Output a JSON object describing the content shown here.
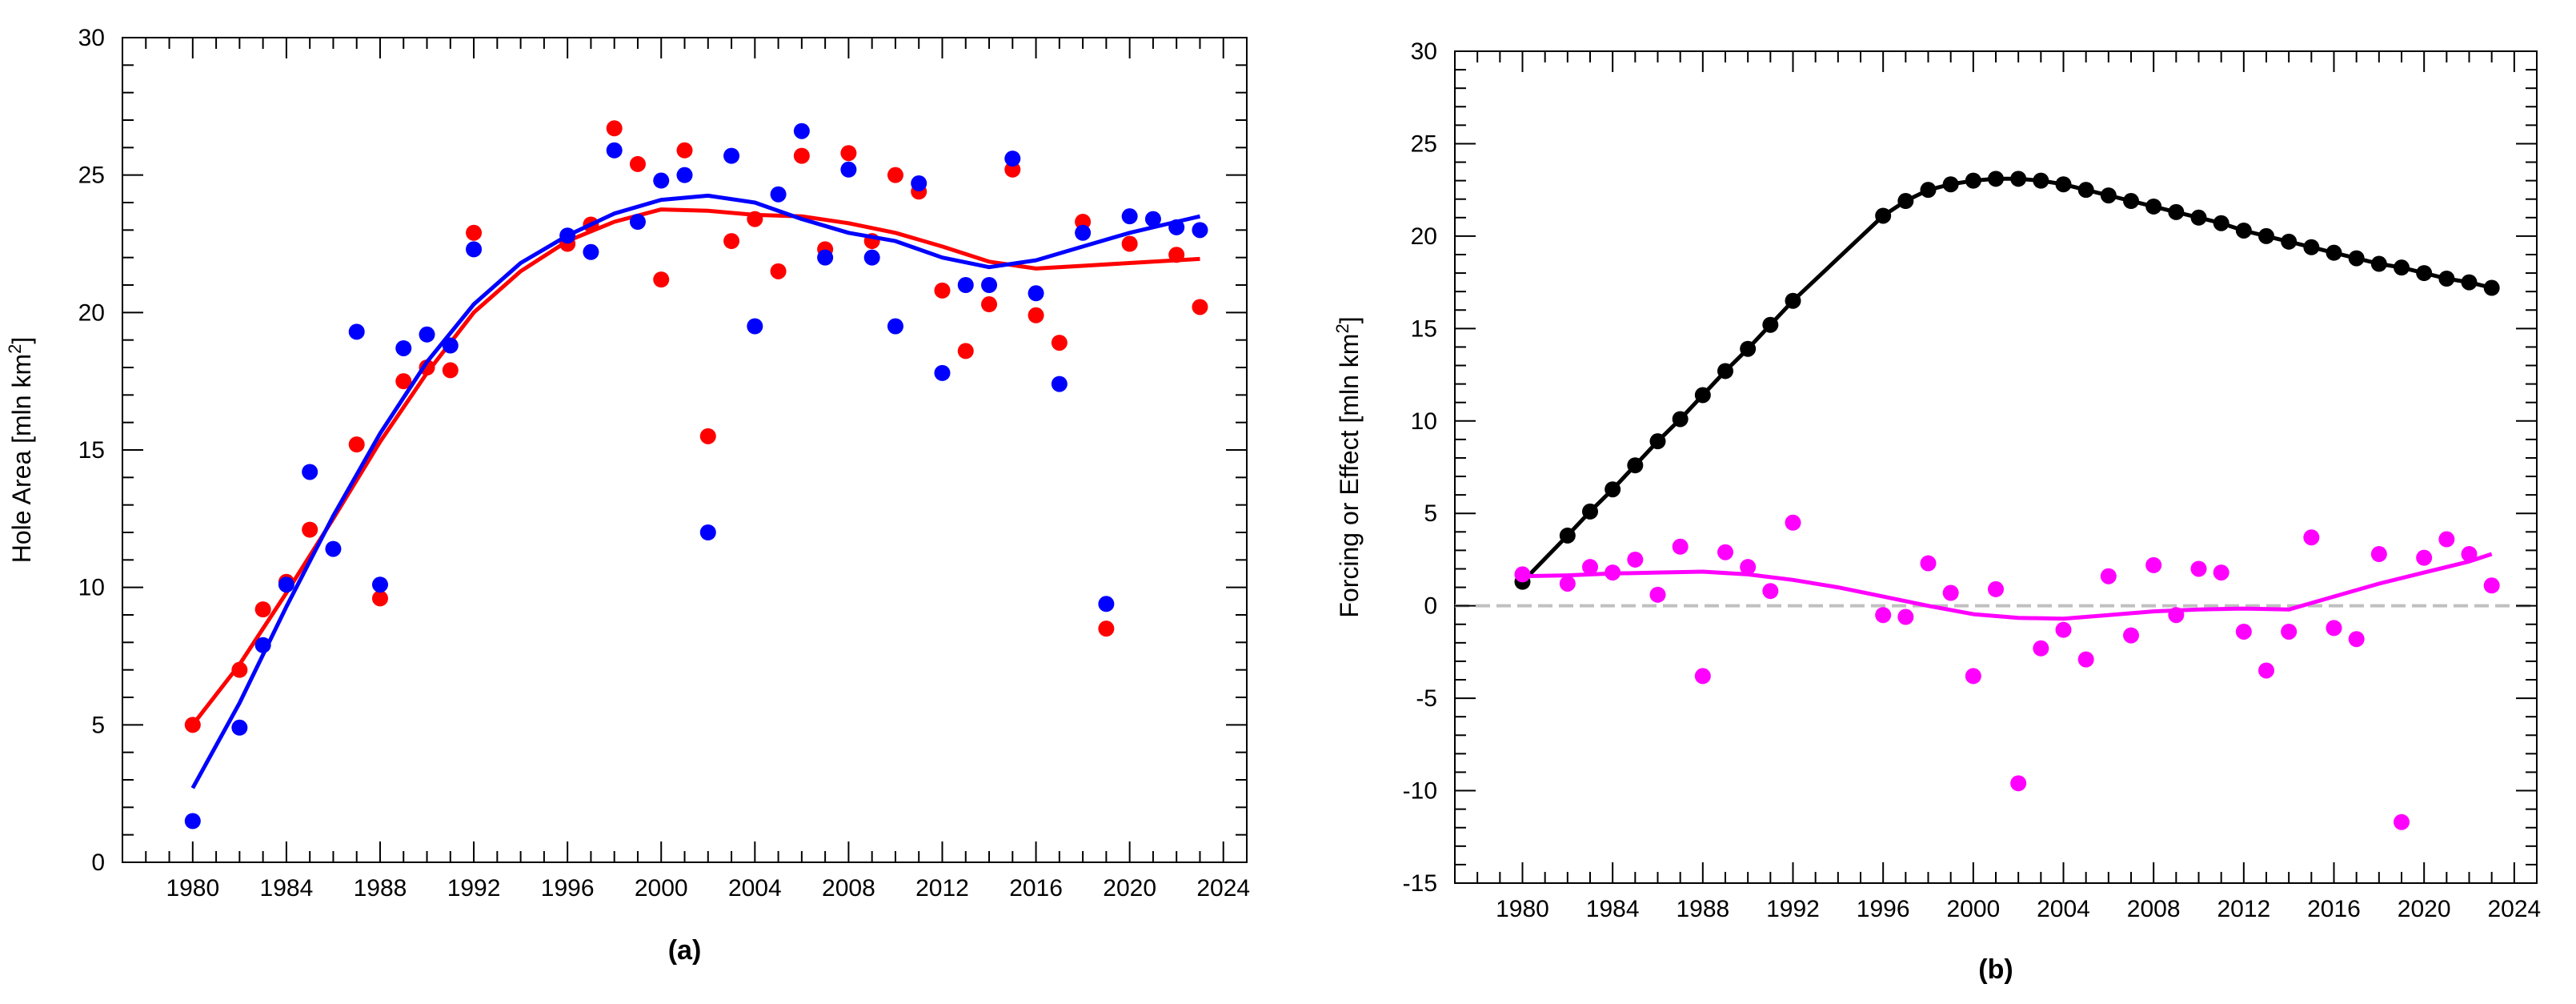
{
  "chart_data": [
    {
      "type": "scatter",
      "panel_label": "(a)",
      "ylabel": "Hole Area [mln km",
      "ylabel_sup": "2",
      "ylabel_end": "]",
      "xlim": [
        1977,
        2025
      ],
      "ylim": [
        0,
        30
      ],
      "xticks": [
        1980,
        1984,
        1988,
        1992,
        1996,
        2000,
        2004,
        2008,
        2012,
        2016,
        2020,
        2024
      ],
      "yticks": [
        0,
        5,
        10,
        15,
        20,
        25,
        30
      ],
      "series": [
        {
          "name": "red",
          "color": "#ff0000",
          "points": [
            [
              1980,
              5.0
            ],
            [
              1982,
              7.0
            ],
            [
              1983,
              9.2
            ],
            [
              1984,
              10.2
            ],
            [
              1985,
              12.1
            ],
            [
              1987,
              15.2
            ],
            [
              1988,
              9.6
            ],
            [
              1989,
              17.5
            ],
            [
              1990,
              18.0
            ],
            [
              1991,
              17.9
            ],
            [
              1992,
              22.9
            ],
            [
              1996,
              22.5
            ],
            [
              1997,
              23.2
            ],
            [
              1998,
              26.7
            ],
            [
              1999,
              25.4
            ],
            [
              2000,
              21.2
            ],
            [
              2001,
              25.9
            ],
            [
              2002,
              15.5
            ],
            [
              2003,
              22.6
            ],
            [
              2004,
              23.4
            ],
            [
              2005,
              21.5
            ],
            [
              2006,
              25.7
            ],
            [
              2007,
              22.3
            ],
            [
              2008,
              25.8
            ],
            [
              2009,
              22.6
            ],
            [
              2010,
              25.0
            ],
            [
              2011,
              24.4
            ],
            [
              2012,
              20.8
            ],
            [
              2013,
              18.6
            ],
            [
              2014,
              20.3
            ],
            [
              2015,
              25.2
            ],
            [
              2016,
              19.9
            ],
            [
              2017,
              18.9
            ],
            [
              2018,
              23.3
            ],
            [
              2019,
              8.5
            ],
            [
              2020,
              22.5
            ],
            [
              2022,
              22.1
            ],
            [
              2023,
              20.2
            ]
          ],
          "smooth": [
            [
              1980,
              5.0
            ],
            [
              1982,
              7.2
            ],
            [
              1984,
              9.8
            ],
            [
              1986,
              12.5
            ],
            [
              1988,
              15.3
            ],
            [
              1990,
              17.8
            ],
            [
              1992,
              20.0
            ],
            [
              1994,
              21.5
            ],
            [
              1996,
              22.6
            ],
            [
              1998,
              23.3
            ],
            [
              2000,
              23.75
            ],
            [
              2002,
              23.7
            ],
            [
              2004,
              23.55
            ],
            [
              2006,
              23.5
            ],
            [
              2008,
              23.25
            ],
            [
              2010,
              22.9
            ],
            [
              2012,
              22.4
            ],
            [
              2014,
              21.85
            ],
            [
              2016,
              21.6
            ],
            [
              2018,
              21.7
            ],
            [
              2020,
              21.8
            ],
            [
              2023,
              21.95
            ]
          ]
        },
        {
          "name": "blue",
          "color": "#0000ff",
          "points": [
            [
              1980,
              1.5
            ],
            [
              1982,
              4.9
            ],
            [
              1983,
              7.9
            ],
            [
              1984,
              10.1
            ],
            [
              1985,
              14.2
            ],
            [
              1986,
              11.4
            ],
            [
              1987,
              19.3
            ],
            [
              1988,
              10.1
            ],
            [
              1989,
              18.7
            ],
            [
              1990,
              19.2
            ],
            [
              1991,
              18.8
            ],
            [
              1992,
              22.3
            ],
            [
              1996,
              22.8
            ],
            [
              1997,
              22.2
            ],
            [
              1998,
              25.9
            ],
            [
              1999,
              23.3
            ],
            [
              2000,
              24.8
            ],
            [
              2001,
              25.0
            ],
            [
              2002,
              12.0
            ],
            [
              2003,
              25.7
            ],
            [
              2004,
              19.5
            ],
            [
              2005,
              24.3
            ],
            [
              2006,
              26.6
            ],
            [
              2007,
              22.0
            ],
            [
              2008,
              25.2
            ],
            [
              2009,
              22.0
            ],
            [
              2010,
              19.5
            ],
            [
              2011,
              24.7
            ],
            [
              2012,
              17.8
            ],
            [
              2013,
              21.0
            ],
            [
              2014,
              21.0
            ],
            [
              2015,
              25.6
            ],
            [
              2016,
              20.7
            ],
            [
              2017,
              17.4
            ],
            [
              2018,
              22.9
            ],
            [
              2019,
              9.4
            ],
            [
              2020,
              23.5
            ],
            [
              2021,
              23.4
            ],
            [
              2022,
              23.1
            ],
            [
              2023,
              23.0
            ]
          ],
          "smooth": [
            [
              1980,
              2.7
            ],
            [
              1982,
              5.8
            ],
            [
              1984,
              9.3
            ],
            [
              1986,
              12.6
            ],
            [
              1988,
              15.6
            ],
            [
              1990,
              18.2
            ],
            [
              1992,
              20.3
            ],
            [
              1994,
              21.8
            ],
            [
              1996,
              22.8
            ],
            [
              1998,
              23.6
            ],
            [
              2000,
              24.1
            ],
            [
              2002,
              24.25
            ],
            [
              2004,
              24.0
            ],
            [
              2006,
              23.4
            ],
            [
              2008,
              22.9
            ],
            [
              2010,
              22.6
            ],
            [
              2012,
              22.0
            ],
            [
              2014,
              21.65
            ],
            [
              2016,
              21.9
            ],
            [
              2018,
              22.4
            ],
            [
              2020,
              22.9
            ],
            [
              2022,
              23.3
            ],
            [
              2023,
              23.5
            ]
          ]
        }
      ]
    },
    {
      "type": "scatter",
      "panel_label": "(b)",
      "ylabel": "Forcing or Effect  [mln km",
      "ylabel_sup": "2",
      "ylabel_end": "]",
      "xlim": [
        1977,
        2025
      ],
      "ylim": [
        -15,
        30
      ],
      "xticks": [
        1980,
        1984,
        1988,
        1992,
        1996,
        2000,
        2004,
        2008,
        2012,
        2016,
        2020,
        2024
      ],
      "yticks": [
        -15,
        -10,
        -5,
        0,
        5,
        10,
        15,
        20,
        25,
        30
      ],
      "zero_line_color": "#c0c0c0",
      "series": [
        {
          "name": "forcing",
          "color": "#000000",
          "connected": true,
          "points": [
            [
              1980,
              1.3
            ],
            [
              1982,
              3.8
            ],
            [
              1983,
              5.1
            ],
            [
              1984,
              6.3
            ],
            [
              1985,
              7.6
            ],
            [
              1986,
              8.9
            ],
            [
              1987,
              10.1
            ],
            [
              1988,
              11.4
            ],
            [
              1989,
              12.7
            ],
            [
              1990,
              13.9
            ],
            [
              1991,
              15.2
            ],
            [
              1992,
              16.5
            ],
            [
              1996,
              21.1
            ],
            [
              1997,
              21.9
            ],
            [
              1998,
              22.5
            ],
            [
              1999,
              22.8
            ],
            [
              2000,
              23.0
            ],
            [
              2001,
              23.1
            ],
            [
              2002,
              23.1
            ],
            [
              2003,
              23.0
            ],
            [
              2004,
              22.8
            ],
            [
              2005,
              22.5
            ],
            [
              2006,
              22.2
            ],
            [
              2007,
              21.9
            ],
            [
              2008,
              21.6
            ],
            [
              2009,
              21.3
            ],
            [
              2010,
              21.0
            ],
            [
              2011,
              20.7
            ],
            [
              2012,
              20.3
            ],
            [
              2013,
              20.0
            ],
            [
              2014,
              19.7
            ],
            [
              2015,
              19.4
            ],
            [
              2016,
              19.1
            ],
            [
              2017,
              18.8
            ],
            [
              2018,
              18.5
            ],
            [
              2019,
              18.3
            ],
            [
              2020,
              18.0
            ],
            [
              2021,
              17.7
            ],
            [
              2022,
              17.5
            ],
            [
              2023,
              17.2
            ]
          ]
        },
        {
          "name": "effect",
          "color": "#ff00ff",
          "points": [
            [
              1980,
              1.7
            ],
            [
              1982,
              1.2
            ],
            [
              1983,
              2.1
            ],
            [
              1984,
              1.8
            ],
            [
              1985,
              2.5
            ],
            [
              1986,
              0.6
            ],
            [
              1987,
              3.2
            ],
            [
              1988,
              -3.8
            ],
            [
              1989,
              2.9
            ],
            [
              1990,
              2.1
            ],
            [
              1991,
              0.8
            ],
            [
              1992,
              4.5
            ],
            [
              1996,
              -0.5
            ],
            [
              1997,
              -0.6
            ],
            [
              1998,
              2.3
            ],
            [
              1999,
              0.7
            ],
            [
              2000,
              -3.8
            ],
            [
              2001,
              0.9
            ],
            [
              2002,
              -9.6
            ],
            [
              2003,
              -2.3
            ],
            [
              2004,
              -1.3
            ],
            [
              2005,
              -2.9
            ],
            [
              2006,
              1.6
            ],
            [
              2007,
              -1.6
            ],
            [
              2008,
              2.2
            ],
            [
              2009,
              -0.5
            ],
            [
              2010,
              2.0
            ],
            [
              2011,
              1.8
            ],
            [
              2012,
              -1.4
            ],
            [
              2013,
              -3.5
            ],
            [
              2014,
              -1.4
            ],
            [
              2015,
              3.7
            ],
            [
              2016,
              -1.2
            ],
            [
              2017,
              -1.8
            ],
            [
              2018,
              2.8
            ],
            [
              2019,
              -11.7
            ],
            [
              2020,
              2.6
            ],
            [
              2021,
              3.6
            ],
            [
              2022,
              2.8
            ],
            [
              2023,
              1.1
            ]
          ],
          "smooth": [
            [
              1980,
              1.6
            ],
            [
              1982,
              1.65
            ],
            [
              1984,
              1.75
            ],
            [
              1986,
              1.8
            ],
            [
              1988,
              1.85
            ],
            [
              1990,
              1.7
            ],
            [
              1992,
              1.4
            ],
            [
              1994,
              1.0
            ],
            [
              1996,
              0.5
            ],
            [
              1998,
              0.0
            ],
            [
              2000,
              -0.45
            ],
            [
              2002,
              -0.65
            ],
            [
              2004,
              -0.7
            ],
            [
              2006,
              -0.5
            ],
            [
              2008,
              -0.3
            ],
            [
              2010,
              -0.2
            ],
            [
              2012,
              -0.15
            ],
            [
              2014,
              -0.2
            ],
            [
              2016,
              0.5
            ],
            [
              2018,
              1.2
            ],
            [
              2020,
              1.8
            ],
            [
              2022,
              2.4
            ],
            [
              2023,
              2.8
            ]
          ]
        }
      ]
    }
  ]
}
